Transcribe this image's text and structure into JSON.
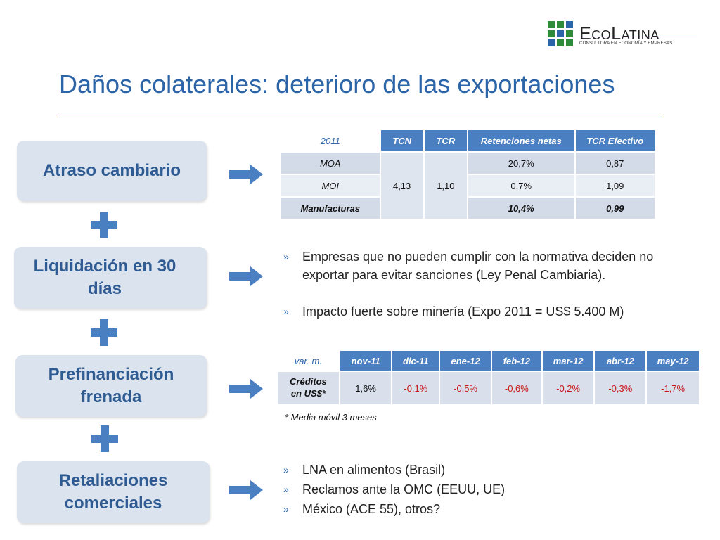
{
  "logo": {
    "name_big1": "E",
    "name_small1": "CO",
    "name_big2": "L",
    "name_small2": "ATINA",
    "tagline": "CONSULTORA EN ECONOMÍA Y EMPRESAS",
    "colors": {
      "green": "#2e8b3a",
      "blue": "#2c64a8"
    }
  },
  "title": "Daños colaterales: deterioro de las exportaciones",
  "boxes": {
    "b1": "Atraso cambiario",
    "b2_line1": "Liquidación en 30",
    "b2_line2": "días",
    "b3_line1": "Prefinanciación",
    "b3_line2": "frenada",
    "b4_line1": "Retaliaciones",
    "b4_line2": "comerciales"
  },
  "table1": {
    "corner": "2011",
    "headers": [
      "TCN",
      "TCR",
      "Retenciones netas",
      "TCR Efectivo"
    ],
    "rows": [
      {
        "label": "MOA",
        "ret": "20,7%",
        "tcre": "0,87"
      },
      {
        "label": "MOI",
        "ret": "0,7%",
        "tcre": "1,09"
      },
      {
        "label": "Manufacturas",
        "ret": "10,4%",
        "tcre": "0,99"
      }
    ],
    "tcn": "4,13",
    "tcr": "1,10"
  },
  "bullets1": [
    "Empresas que no pueden cumplir con la normativa deciden no exportar para evitar sanciones (Ley Penal Cambiaria).",
    "Impacto fuerte sobre minería (Expo 2011 = US$ 5.400 M)"
  ],
  "table2": {
    "corner": "var. m.",
    "headers": [
      "nov-11",
      "dic-11",
      "ene-12",
      "feb-12",
      "mar-12",
      "abr-12",
      "may-12"
    ],
    "row_label_1": "Créditos",
    "row_label_2": "en US$*",
    "values": [
      "1,6%",
      "-0,1%",
      "-0,5%",
      "-0,6%",
      "-0,2%",
      "-0,3%",
      "-1,7%"
    ]
  },
  "note": "* Media móvil 3 meses",
  "bullets2": [
    "LNA en alimentos (Brasil)",
    "Reclamos ante la OMC (EEUU, UE)",
    "México (ACE 55), otros?"
  ],
  "bullet_marker": "»",
  "colors": {
    "accent": "#4a7fc1",
    "title": "#2c64a8",
    "negative": "#c81818",
    "box_fill": "#dbe3ef"
  }
}
